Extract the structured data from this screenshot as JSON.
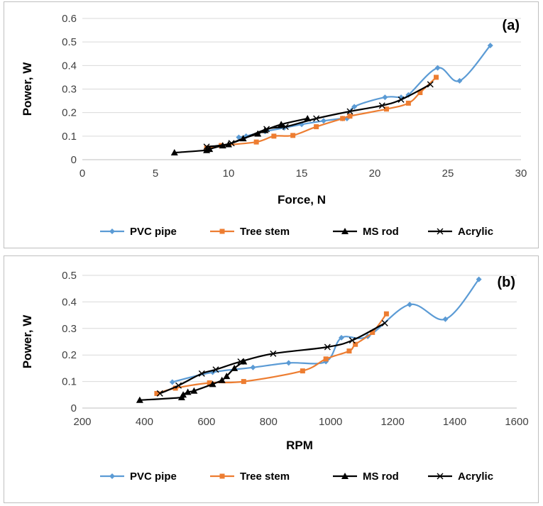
{
  "chart_data": [
    {
      "type": "line",
      "panel_label": "(a)",
      "xlabel": "Force, N",
      "ylabel": "Power, W",
      "xlim": [
        0,
        30
      ],
      "ylim": [
        0,
        0.6
      ],
      "xticks": [
        "0",
        "5",
        "10",
        "15",
        "20",
        "25",
        "30"
      ],
      "yticks": [
        "0",
        "0.1",
        "0.2",
        "0.3",
        "0.4",
        "0.5",
        "0.6"
      ],
      "grid": "horizontal",
      "legend": "bottom",
      "series": [
        {
          "name": "PVC pipe",
          "color": "#5b9bd5",
          "marker": "diamond",
          "points": [
            [
              10.7,
              0.095
            ],
            [
              11.2,
              0.1
            ],
            [
              12.5,
              0.12
            ],
            [
              13.8,
              0.135
            ],
            [
              15.0,
              0.15
            ],
            [
              16.5,
              0.165
            ],
            [
              17.8,
              0.175
            ],
            [
              18.1,
              0.175
            ],
            [
              18.6,
              0.225
            ],
            [
              20.7,
              0.265
            ],
            [
              21.8,
              0.265
            ],
            [
              22.3,
              0.275
            ],
            [
              24.3,
              0.39
            ],
            [
              25.8,
              0.335
            ],
            [
              27.9,
              0.485
            ]
          ]
        },
        {
          "name": "Tree stem",
          "color": "#ed7d31",
          "marker": "square",
          "points": [
            [
              8.5,
              0.05
            ],
            [
              9.5,
              0.06
            ],
            [
              11.9,
              0.075
            ],
            [
              13.1,
              0.1
            ],
            [
              14.4,
              0.103
            ],
            [
              16.0,
              0.14
            ],
            [
              17.8,
              0.175
            ],
            [
              18.3,
              0.185
            ],
            [
              20.8,
              0.215
            ],
            [
              22.3,
              0.24
            ],
            [
              23.1,
              0.285
            ],
            [
              24.2,
              0.35
            ]
          ]
        },
        {
          "name": "MS rod",
          "color": "#000000",
          "marker": "triangle",
          "points": [
            [
              6.3,
              0.03
            ],
            [
              8.5,
              0.04
            ],
            [
              8.7,
              0.045
            ],
            [
              9.6,
              0.06
            ],
            [
              10.0,
              0.065
            ],
            [
              11.0,
              0.09
            ],
            [
              12.0,
              0.11
            ],
            [
              12.5,
              0.125
            ],
            [
              13.6,
              0.15
            ],
            [
              15.4,
              0.175
            ]
          ]
        },
        {
          "name": "Acrylic",
          "color": "#000000",
          "marker": "x",
          "points": [
            [
              8.5,
              0.055
            ],
            [
              10.2,
              0.07
            ],
            [
              12.6,
              0.13
            ],
            [
              13.9,
              0.14
            ],
            [
              16.0,
              0.175
            ],
            [
              18.3,
              0.205
            ],
            [
              20.5,
              0.23
            ],
            [
              21.8,
              0.255
            ],
            [
              23.8,
              0.32
            ]
          ]
        }
      ]
    },
    {
      "type": "line",
      "panel_label": "(b)",
      "xlabel": "RPM",
      "ylabel": "Power, W",
      "xlim": [
        200,
        1600
      ],
      "ylim": [
        0,
        0.5
      ],
      "xticks": [
        "200",
        "400",
        "600",
        "800",
        "1000",
        "1200",
        "1400",
        "1600"
      ],
      "yticks": [
        "0",
        "0.1",
        "0.2",
        "0.3",
        "0.4",
        "0.5"
      ],
      "grid": "horizontal",
      "legend": "bottom",
      "series": [
        {
          "name": "PVC pipe",
          "color": "#5b9bd5",
          "marker": "diamond",
          "points": [
            [
              490,
              0.098
            ],
            [
              620,
              0.135
            ],
            [
              750,
              0.153
            ],
            [
              865,
              0.17
            ],
            [
              985,
              0.175
            ],
            [
              1035,
              0.265
            ],
            [
              1120,
              0.27
            ],
            [
              1255,
              0.39
            ],
            [
              1370,
              0.335
            ],
            [
              1478,
              0.485
            ]
          ]
        },
        {
          "name": "Tree stem",
          "color": "#ed7d31",
          "marker": "square",
          "points": [
            [
              440,
              0.055
            ],
            [
              500,
              0.075
            ],
            [
              610,
              0.095
            ],
            [
              720,
              0.1
            ],
            [
              910,
              0.14
            ],
            [
              985,
              0.185
            ],
            [
              1060,
              0.215
            ],
            [
              1080,
              0.24
            ],
            [
              1135,
              0.285
            ],
            [
              1180,
              0.355
            ]
          ]
        },
        {
          "name": "MS rod",
          "color": "#000000",
          "marker": "triangle",
          "points": [
            [
              385,
              0.03
            ],
            [
              520,
              0.04
            ],
            [
              525,
              0.05
            ],
            [
              540,
              0.06
            ],
            [
              560,
              0.065
            ],
            [
              620,
              0.09
            ],
            [
              650,
              0.105
            ],
            [
              665,
              0.12
            ],
            [
              690,
              0.15
            ],
            [
              720,
              0.175
            ]
          ]
        },
        {
          "name": "Acrylic",
          "color": "#000000",
          "marker": "x",
          "points": [
            [
              450,
              0.055
            ],
            [
              510,
              0.085
            ],
            [
              585,
              0.13
            ],
            [
              630,
              0.145
            ],
            [
              710,
              0.175
            ],
            [
              815,
              0.205
            ],
            [
              990,
              0.23
            ],
            [
              1070,
              0.255
            ],
            [
              1175,
              0.32
            ]
          ]
        }
      ]
    }
  ]
}
